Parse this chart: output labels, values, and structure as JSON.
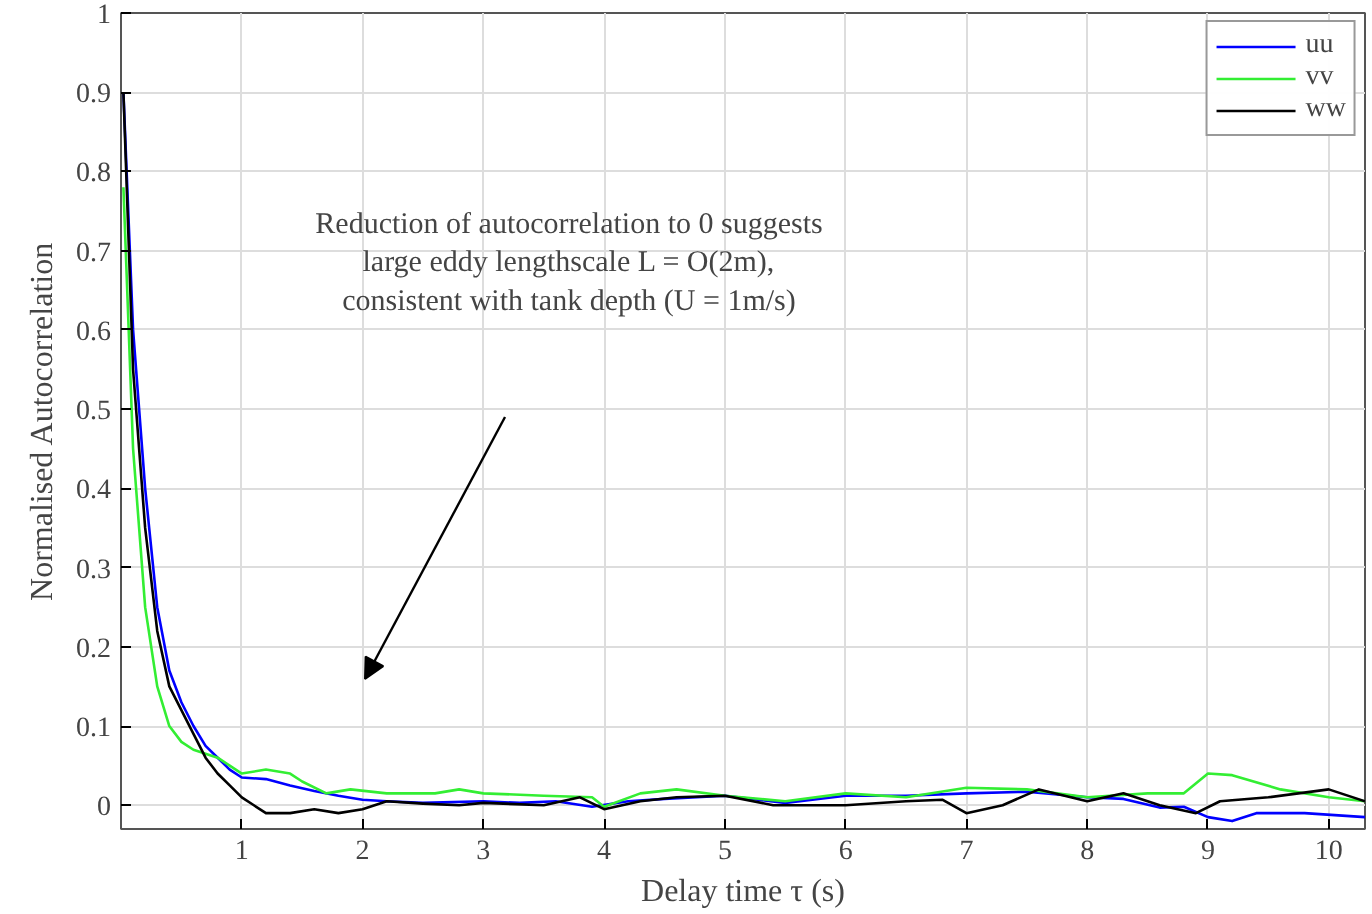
{
  "chart_data": {
    "type": "line",
    "xlabel": "Delay time τ (s)",
    "ylabel": "Normalised Autocorrelation",
    "xlim": [
      0,
      10.3
    ],
    "ylim": [
      -0.03,
      1
    ],
    "xticks": [
      1,
      2,
      3,
      4,
      5,
      6,
      7,
      8,
      9,
      10
    ],
    "yticks": [
      0,
      0.1,
      0.2,
      0.3,
      0.4,
      0.5,
      0.6,
      0.7,
      0.8,
      0.9,
      1
    ],
    "grid": true,
    "legend": "top right",
    "line_style": "solid",
    "marker": "none",
    "annotations": [
      "Reduction of autocorrelation to 0 suggests\nlarge eddy lengthscale L = O(2m),\nconsistent with tank depth (U = 1m/s)"
    ],
    "series": [
      {
        "name": "uu",
        "color": "#0000ff",
        "x": [
          0.02,
          0.1,
          0.2,
          0.3,
          0.4,
          0.5,
          0.6,
          0.7,
          0.8,
          0.9,
          1.0,
          1.2,
          1.4,
          1.6,
          1.8,
          2.0,
          2.2,
          2.5,
          3.0,
          3.3,
          3.6,
          3.9,
          4.2,
          4.5,
          5.0,
          5.5,
          6.0,
          6.5,
          7.0,
          7.5,
          8.0,
          8.3,
          8.6,
          8.8,
          9.0,
          9.2,
          9.4,
          9.8,
          10.3
        ],
        "values": [
          0.9,
          0.6,
          0.4,
          0.25,
          0.17,
          0.13,
          0.1,
          0.075,
          0.06,
          0.045,
          0.035,
          0.033,
          0.025,
          0.018,
          0.012,
          0.007,
          0.005,
          0.003,
          0.005,
          0.003,
          0.005,
          -0.002,
          0.005,
          0.008,
          0.012,
          0.003,
          0.012,
          0.012,
          0.015,
          0.017,
          0.01,
          0.008,
          -0.003,
          -0.002,
          -0.015,
          -0.02,
          -0.01,
          -0.01,
          -0.015
        ]
      },
      {
        "name": "vv",
        "color": "#33ee33",
        "x": [
          0.02,
          0.1,
          0.2,
          0.3,
          0.4,
          0.5,
          0.6,
          0.8,
          0.9,
          1.0,
          1.2,
          1.4,
          1.5,
          1.7,
          1.9,
          2.2,
          2.6,
          2.8,
          3.0,
          3.5,
          3.9,
          4.0,
          4.3,
          4.6,
          5.0,
          5.5,
          6.0,
          6.5,
          7.0,
          7.5,
          8.0,
          8.5,
          8.8,
          9.0,
          9.2,
          9.6,
          10.0,
          10.3
        ],
        "values": [
          0.78,
          0.45,
          0.25,
          0.15,
          0.1,
          0.08,
          0.07,
          0.06,
          0.05,
          0.04,
          0.045,
          0.04,
          0.03,
          0.015,
          0.02,
          0.015,
          0.015,
          0.02,
          0.015,
          0.012,
          0.01,
          -0.002,
          0.015,
          0.02,
          0.012,
          0.005,
          0.015,
          0.01,
          0.022,
          0.02,
          0.01,
          0.015,
          0.015,
          0.04,
          0.038,
          0.02,
          0.01,
          0.005
        ]
      },
      {
        "name": "ww",
        "color": "#000000",
        "x": [
          0.02,
          0.1,
          0.2,
          0.3,
          0.4,
          0.5,
          0.6,
          0.7,
          0.8,
          0.9,
          1.0,
          1.1,
          1.2,
          1.4,
          1.6,
          1.8,
          2.0,
          2.2,
          2.5,
          2.8,
          3.0,
          3.5,
          3.8,
          4.0,
          4.3,
          4.6,
          5.0,
          5.4,
          6.0,
          6.5,
          6.8,
          7.0,
          7.3,
          7.6,
          8.0,
          8.3,
          8.6,
          8.9,
          9.1,
          9.5,
          10.0,
          10.3
        ],
        "values": [
          0.9,
          0.55,
          0.35,
          0.22,
          0.15,
          0.12,
          0.09,
          0.06,
          0.04,
          0.025,
          0.01,
          0.0,
          -0.01,
          -0.01,
          -0.005,
          -0.01,
          -0.005,
          0.005,
          0.002,
          0.0,
          0.003,
          0.0,
          0.01,
          -0.005,
          0.005,
          0.01,
          0.012,
          0.0,
          0.0,
          0.005,
          0.007,
          -0.01,
          0.0,
          0.02,
          0.005,
          0.015,
          0.0,
          -0.01,
          0.005,
          0.01,
          0.02,
          0.005
        ]
      }
    ]
  }
}
